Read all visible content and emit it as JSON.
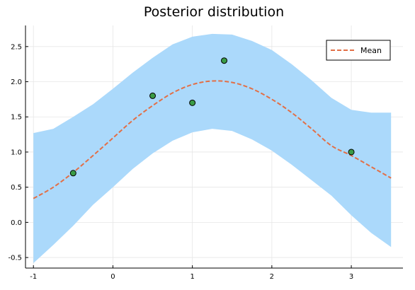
{
  "chart_data": {
    "type": "line",
    "title": "Posterior distribution",
    "xlabel": "",
    "ylabel": "",
    "xlim": [
      -1.1,
      3.65
    ],
    "ylim": [
      -0.65,
      2.8
    ],
    "xticks": [
      -1,
      0,
      1,
      2,
      3
    ],
    "yticks": [
      -0.5,
      0.0,
      0.5,
      1.0,
      1.5,
      2.0,
      2.5
    ],
    "xtick_labels": [
      "-1",
      "0",
      "1",
      "2",
      "3"
    ],
    "ytick_labels": [
      "-0.5",
      "0.0",
      "0.5",
      "1.0",
      "1.5",
      "2.0",
      "2.5"
    ],
    "grid": true,
    "legend_position": "top-right",
    "legend": [
      "Mean"
    ],
    "mean": {
      "name": "Mean",
      "color": "#e26f46",
      "x": [
        -1.0,
        -0.75,
        -0.5,
        -0.25,
        0.0,
        0.25,
        0.5,
        0.75,
        1.0,
        1.25,
        1.5,
        1.75,
        2.0,
        2.25,
        2.5,
        2.75,
        3.0,
        3.25,
        3.5
      ],
      "y": [
        0.34,
        0.5,
        0.71,
        0.95,
        1.2,
        1.45,
        1.66,
        1.84,
        1.96,
        2.01,
        1.99,
        1.9,
        1.75,
        1.56,
        1.33,
        1.09,
        0.95,
        0.79,
        0.63
      ]
    },
    "band": {
      "color": "#abd9fb",
      "x": [
        -1.0,
        -0.75,
        -0.5,
        -0.25,
        0.0,
        0.25,
        0.5,
        0.75,
        1.0,
        1.25,
        1.5,
        1.75,
        2.0,
        2.25,
        2.5,
        2.75,
        3.0,
        3.25,
        3.5
      ],
      "upper": [
        1.27,
        1.33,
        1.5,
        1.68,
        1.9,
        2.13,
        2.34,
        2.53,
        2.64,
        2.68,
        2.67,
        2.58,
        2.45,
        2.25,
        2.02,
        1.77,
        1.6,
        1.56,
        1.56
      ],
      "lower": [
        -0.58,
        -0.32,
        -0.05,
        0.25,
        0.5,
        0.76,
        0.98,
        1.16,
        1.28,
        1.33,
        1.3,
        1.18,
        1.02,
        0.82,
        0.6,
        0.38,
        0.1,
        -0.15,
        -0.35
      ]
    },
    "observations": {
      "color": "#3a9b46",
      "x": [
        -0.5,
        0.5,
        1.0,
        1.4,
        3.0
      ],
      "y": [
        0.7,
        1.8,
        1.7,
        2.3,
        1.0
      ]
    }
  }
}
